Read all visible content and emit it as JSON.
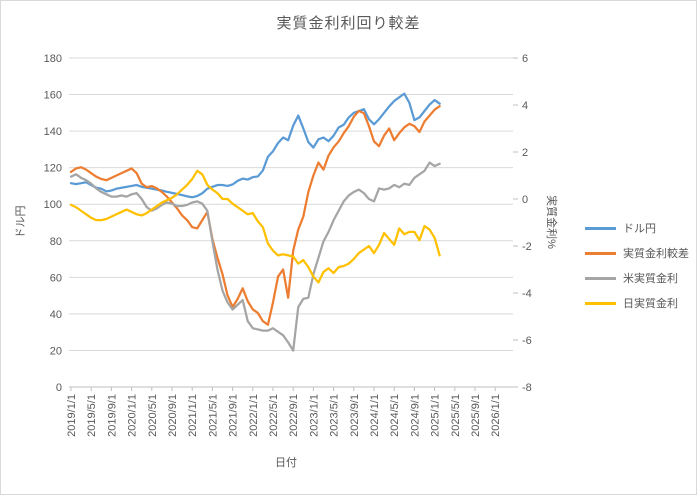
{
  "title": "実質金利利回り較差",
  "chart_data": {
    "type": "line",
    "title": "実質金利利回り較差",
    "xlabel": "日付",
    "ylabel_left": "ドル円",
    "ylabel_right": "実質金利%",
    "grid": "horizontal",
    "legend_position": "right",
    "x_interval": "monthly",
    "x_start": "2019/1",
    "x_end": "2025/2",
    "x_axis_extends_to": "2026/1",
    "x_tick_labels": [
      "2019/1/1",
      "2019/5/1",
      "2019/9/1",
      "2020/1/1",
      "2020/5/1",
      "2020/9/1",
      "2021/1/1",
      "2021/5/1",
      "2021/9/1",
      "2022/1/1",
      "2022/5/1",
      "2022/9/1",
      "2023/1/1",
      "2023/5/1",
      "2023/9/1",
      "2024/1/1",
      "2024/5/1",
      "2024/9/1",
      "2025/1/1",
      "2025/5/1",
      "2025/9/1",
      "2026/1/1"
    ],
    "left_axis": {
      "min": 0,
      "max": 180,
      "step": 20,
      "ticks": [
        "0",
        "20",
        "40",
        "60",
        "80",
        "100",
        "120",
        "140",
        "160",
        "180"
      ]
    },
    "right_axis": {
      "min": -8,
      "max": 6,
      "step": 2,
      "ticks": [
        "-8",
        "-6",
        "-4",
        "-2",
        "0",
        "2",
        "4",
        "6"
      ]
    },
    "series": [
      {
        "name": "ドル円",
        "axis": "left",
        "color": "#5B9BD5",
        "values": [
          111.5,
          111,
          111.5,
          112,
          110.5,
          109,
          108.5,
          107,
          107.5,
          108.5,
          109,
          109.5,
          110,
          110.5,
          109.5,
          109,
          108.5,
          108,
          107.5,
          106.8,
          106.2,
          105.6,
          105,
          104.3,
          103.8,
          104.5,
          106,
          108.5,
          109.5,
          110.5,
          110.5,
          110,
          110.8,
          112.8,
          114,
          113.5,
          114.8,
          115.2,
          118.5,
          126,
          129,
          133.5,
          136.5,
          135,
          143,
          148.5,
          141.5,
          134,
          131,
          135.5,
          136.5,
          134.5,
          137.5,
          142,
          143.5,
          147.5,
          150,
          151,
          152,
          146.5,
          143.7,
          146.5,
          150,
          153.5,
          156.5,
          158.5,
          160.5,
          155.5,
          146,
          147.5,
          151,
          154.5,
          157,
          155
        ]
      },
      {
        "name": "実質金利較差",
        "axis": "right",
        "color": "#ED7D31",
        "values": [
          1.15,
          1.3,
          1.35,
          1.25,
          1.1,
          0.95,
          0.85,
          0.8,
          0.9,
          1.0,
          1.1,
          1.2,
          1.3,
          1.1,
          0.65,
          0.5,
          0.55,
          0.45,
          0.3,
          0.1,
          -0.15,
          -0.4,
          -0.7,
          -0.9,
          -1.2,
          -1.25,
          -0.9,
          -0.55,
          -1.7,
          -2.5,
          -3.2,
          -4.1,
          -4.6,
          -4.25,
          -3.8,
          -4.35,
          -4.7,
          -4.85,
          -5.2,
          -5.35,
          -4.4,
          -3.3,
          -3.0,
          -4.2,
          -2.2,
          -1.3,
          -0.75,
          0.3,
          1.0,
          1.55,
          1.25,
          1.85,
          2.2,
          2.45,
          2.8,
          3.1,
          3.5,
          3.75,
          3.65,
          3.1,
          2.45,
          2.25,
          2.7,
          3.0,
          2.5,
          2.8,
          3.05,
          3.2,
          3.1,
          2.85,
          3.3,
          3.55,
          3.8,
          3.95
        ]
      },
      {
        "name": "米実質金利",
        "axis": "right",
        "color": "#A5A5A5",
        "values": [
          0.95,
          1.05,
          0.9,
          0.8,
          0.65,
          0.45,
          0.3,
          0.2,
          0.1,
          0.1,
          0.15,
          0.1,
          0.2,
          0.25,
          0.0,
          -0.35,
          -0.5,
          -0.4,
          -0.25,
          -0.15,
          -0.2,
          -0.3,
          -0.3,
          -0.25,
          -0.15,
          -0.1,
          -0.2,
          -0.5,
          -1.8,
          -3.0,
          -3.9,
          -4.4,
          -4.7,
          -4.5,
          -4.3,
          -5.2,
          -5.5,
          -5.55,
          -5.6,
          -5.6,
          -5.5,
          -5.65,
          -5.8,
          -6.1,
          -6.45,
          -4.6,
          -4.25,
          -4.2,
          -3.2,
          -2.5,
          -1.8,
          -1.4,
          -0.9,
          -0.5,
          -0.1,
          0.15,
          0.3,
          0.4,
          0.25,
          0.0,
          -0.1,
          0.45,
          0.4,
          0.45,
          0.6,
          0.5,
          0.65,
          0.6,
          0.9,
          1.05,
          1.2,
          1.55,
          1.4,
          1.5
        ]
      },
      {
        "name": "日実質金利",
        "axis": "right",
        "color": "#FFC000",
        "values": [
          -0.25,
          -0.35,
          -0.5,
          -0.65,
          -0.8,
          -0.9,
          -0.9,
          -0.85,
          -0.75,
          -0.65,
          -0.55,
          -0.45,
          -0.55,
          -0.65,
          -0.7,
          -0.6,
          -0.45,
          -0.3,
          -0.15,
          -0.05,
          0.05,
          0.2,
          0.4,
          0.6,
          0.85,
          1.2,
          1.05,
          0.6,
          0.4,
          0.25,
          0.0,
          0.0,
          -0.2,
          -0.35,
          -0.5,
          -0.65,
          -0.6,
          -0.95,
          -1.2,
          -1.9,
          -2.2,
          -2.4,
          -2.35,
          -2.4,
          -2.45,
          -2.75,
          -2.6,
          -2.9,
          -3.3,
          -3.55,
          -3.1,
          -2.95,
          -3.15,
          -2.9,
          -2.85,
          -2.75,
          -2.55,
          -2.3,
          -2.15,
          -2.0,
          -2.3,
          -1.95,
          -1.45,
          -1.7,
          -1.95,
          -1.25,
          -1.5,
          -1.4,
          -1.4,
          -1.75,
          -1.15,
          -1.3,
          -1.65,
          -2.4
        ]
      }
    ],
    "colors": {
      "gridline": "#D9D9D9",
      "axisline": "#BFBFBF",
      "text": "#595959",
      "background": "#FFFFFF"
    }
  }
}
